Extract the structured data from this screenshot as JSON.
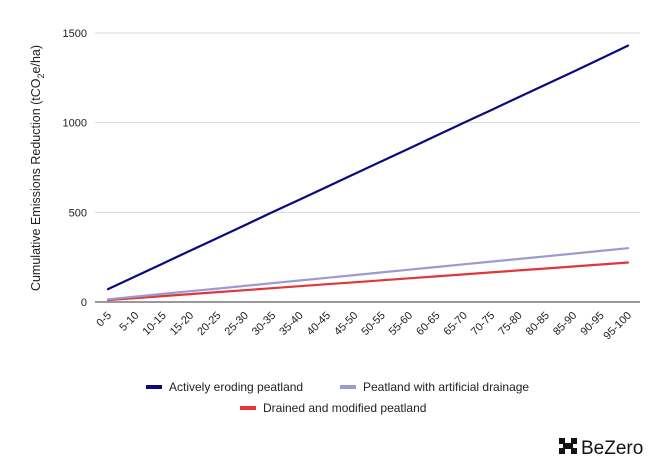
{
  "chart_data": {
    "type": "line",
    "title": "",
    "xlabel": "",
    "ylabel": "Cumulative Emissions Reduction (tCO2e/ha)",
    "ylabel_parts": {
      "before": "Cumulative Emissions Reduction (tCO",
      "sub": "2",
      "after": "e/ha)"
    },
    "ylim": [
      0,
      1500
    ],
    "yticks": [
      0,
      500,
      1000,
      1500
    ],
    "grid": true,
    "legend_position": "bottom",
    "categories": [
      "0-5",
      "5-10",
      "10-15",
      "15-20",
      "20-25",
      "25-30",
      "30-35",
      "35-40",
      "40-45",
      "45-50",
      "50-55",
      "55-60",
      "60-65",
      "65-70",
      "70-75",
      "75-80",
      "80-85",
      "85-90",
      "90-95",
      "95-100"
    ],
    "series": [
      {
        "name": "Actively eroding peatland",
        "color": "#0a0a7e",
        "values": [
          72,
          143,
          214,
          286,
          357,
          428,
          500,
          571,
          642,
          714,
          785,
          856,
          928,
          999,
          1070,
          1142,
          1213,
          1284,
          1356,
          1430
        ]
      },
      {
        "name": "Peatland with artificial drainage",
        "color": "#9b9bd3",
        "values": [
          15,
          30,
          45,
          60,
          75,
          90,
          105,
          120,
          135,
          150,
          165,
          180,
          195,
          210,
          225,
          240,
          255,
          270,
          285,
          300
        ]
      },
      {
        "name": "Drained and modified peatland",
        "color": "#e0363c",
        "values": [
          11,
          22,
          33,
          44,
          55,
          66,
          77,
          88,
          99,
          110,
          121,
          132,
          143,
          154,
          165,
          176,
          187,
          198,
          209,
          220
        ]
      }
    ]
  },
  "branding": {
    "logo_text": "BeZero",
    "logo_icon": "bezero-logo-icon"
  }
}
